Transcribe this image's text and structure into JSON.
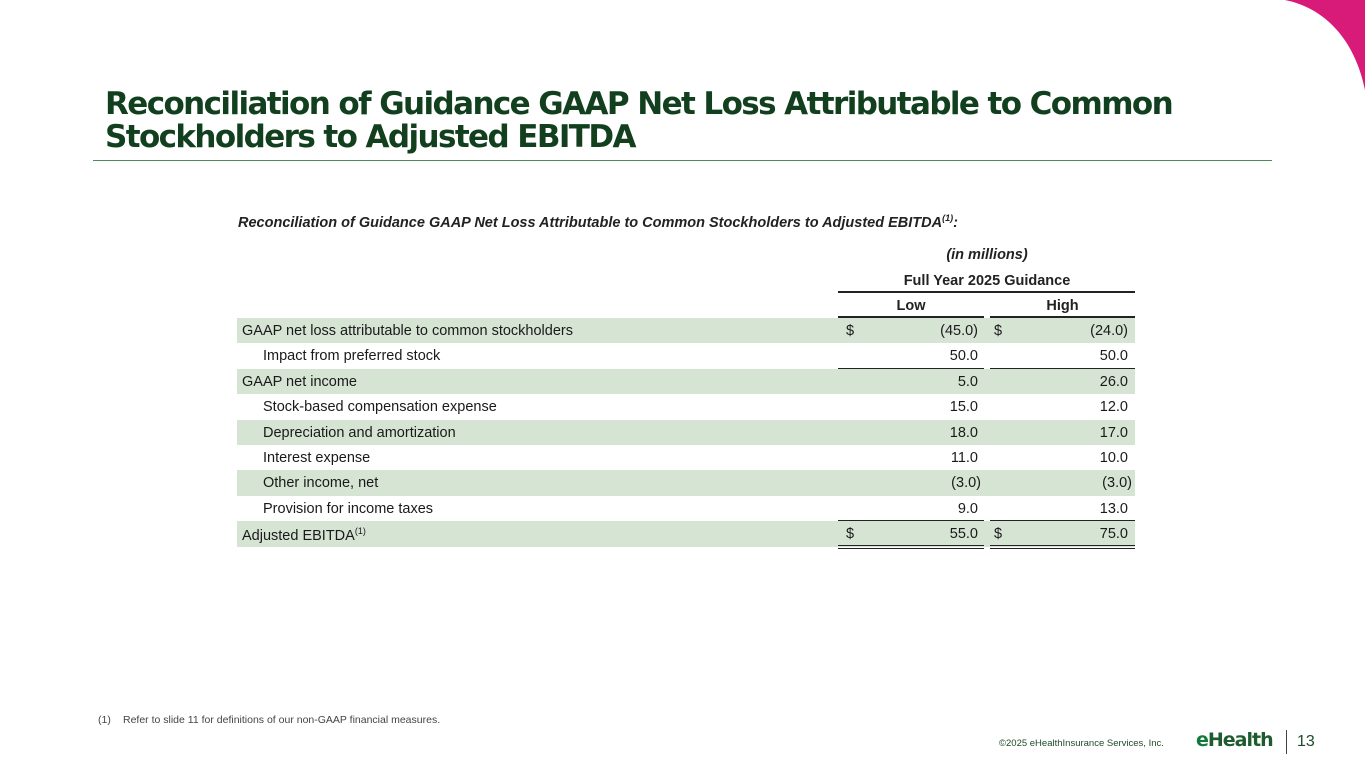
{
  "slide": {
    "title_line1": "Reconciliation of Guidance GAAP Net Loss Attributable to Common",
    "title_line2": "Stockholders to Adjusted EBITDA"
  },
  "table": {
    "heading": "Reconciliation of Guidance GAAP Net Loss Attributable to Common Stockholders to Adjusted EBITDA",
    "heading_sup": "(1)",
    "heading_suffix": ":",
    "units": "(in millions)",
    "period": "Full Year 2025 Guidance",
    "col_low": "Low",
    "col_high": "High",
    "rows": [
      {
        "label": "GAAP net loss attributable to common stockholders",
        "low_dollar": "$",
        "low": "(45.0)",
        "high_dollar": "$",
        "high": "(24.0)"
      },
      {
        "label": "Impact from preferred stock",
        "low": "50.0",
        "high": "50.0"
      },
      {
        "label": "GAAP net income",
        "low": "5.0",
        "high": "26.0"
      },
      {
        "label": "Stock-based compensation expense",
        "low": "15.0",
        "high": "12.0"
      },
      {
        "label": "Depreciation and amortization",
        "low": "18.0",
        "high": "17.0"
      },
      {
        "label": "Interest expense",
        "low": "11.0",
        "high": "10.0"
      },
      {
        "label": "Other income, net",
        "low": "(3.0)",
        "high": "(3.0)"
      },
      {
        "label": "Provision for income taxes",
        "low": "9.0",
        "high": "13.0"
      },
      {
        "label": "Adjusted EBITDA",
        "label_sup": "(1)",
        "low_dollar": "$",
        "low": "55.0",
        "high_dollar": "$",
        "high": "75.0"
      }
    ]
  },
  "footnote": {
    "number": "(1)",
    "text": "Refer to slide 11 for definitions of our non-GAAP financial measures."
  },
  "footer": {
    "copyright": "©2025 eHealthInsurance Services, Inc.",
    "logo_e": "e",
    "logo_rest": "Health",
    "page_number": "13"
  },
  "colors": {
    "title": "#12401f",
    "row_shade": "#d6e4d4",
    "accent_pink": "#d81b78"
  }
}
